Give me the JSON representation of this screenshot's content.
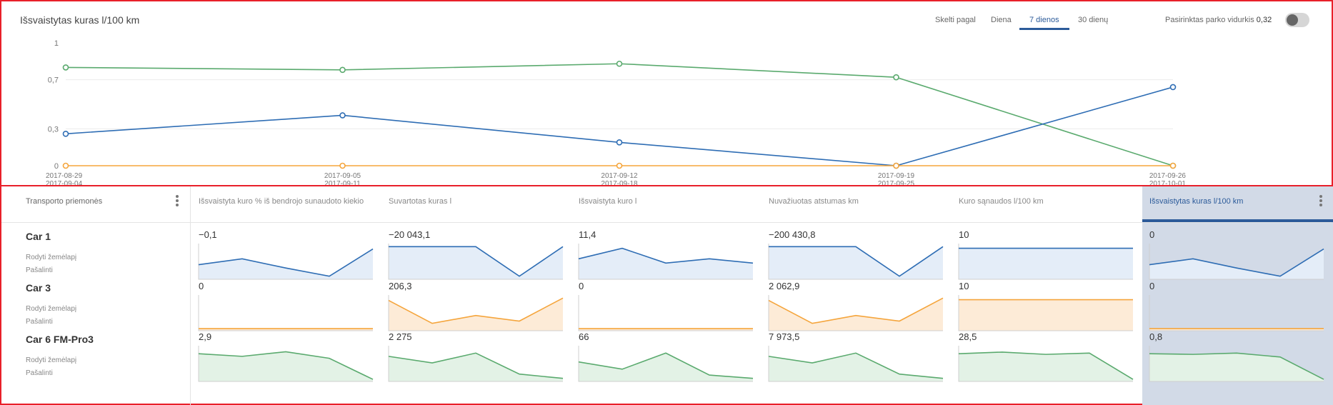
{
  "chart": {
    "title": "Išsvaistytas kuras l/100 km",
    "split_label": "Skelti pagal",
    "tabs": [
      "Diena",
      "7 dienos",
      "30 dienų"
    ],
    "active_tab": "7 dienos",
    "fleet_avg_label": "Pasirinktas parko vidurkis",
    "fleet_avg_value": "0,32",
    "toggle_on": false
  },
  "chart_data": {
    "type": "line",
    "title": "Išsvaistytas kuras l/100 km",
    "categories": [
      [
        "2017-08-29",
        "2017-09-04"
      ],
      [
        "2017-09-05",
        "2017-09-11"
      ],
      [
        "2017-09-12",
        "2017-09-18"
      ],
      [
        "2017-09-19",
        "2017-09-25"
      ],
      [
        "2017-09-26",
        "2017-10-01"
      ]
    ],
    "y_ticks": [
      {
        "value": 0,
        "label": "0"
      },
      {
        "value": 0.3,
        "label": "0,3"
      },
      {
        "value": 0.7,
        "label": "0,7"
      },
      {
        "value": 1,
        "label": "1"
      }
    ],
    "ylim": [
      0,
      1
    ],
    "series": [
      {
        "color": "#5aaa6e",
        "values": [
          0.8,
          0.78,
          0.83,
          0.72,
          0
        ]
      },
      {
        "color": "#2e6db4",
        "values": [
          0.26,
          0.41,
          0.19,
          0,
          0.64
        ]
      },
      {
        "color": "#f5a53c",
        "values": [
          0,
          0,
          0,
          0,
          0
        ]
      }
    ]
  },
  "table": {
    "vehicle_header": "Transporto priemonės",
    "columns": [
      "Išsvaistyta kuro % iš bendrojo sunaudoto kiekio",
      "Suvartotas kuras l",
      "Išsvaistyta kuro l",
      "Nuvažiuotas atstumas km",
      "Kuro sąnaudos l/100 km",
      "Išsvaistytas kuras l/100 km"
    ],
    "selected_column": 5,
    "show_on_map_label": "Rodyti žemėlapį",
    "remove_label": "Pašalinti",
    "rows": [
      {
        "name": "Car 1",
        "color": "#2e6db4",
        "fill": "#e4edf8",
        "values": [
          "−0,1",
          "−20 043,1",
          "11,4",
          "−200 430,8",
          "10",
          "0"
        ],
        "sparks": [
          [
            0.4,
            0.58,
            0.3,
            0.05,
            0.88
          ],
          [
            0.95,
            0.95,
            0.95,
            0.05,
            0.95
          ],
          [
            0.58,
            0.9,
            0.45,
            0.58,
            0.45
          ],
          [
            0.95,
            0.95,
            0.95,
            0.05,
            0.95
          ],
          [
            0.9,
            0.9,
            0.9,
            0.9,
            0.9
          ],
          [
            0.4,
            0.58,
            0.3,
            0.05,
            0.88
          ]
        ]
      },
      {
        "name": "Car 3",
        "color": "#f5a53c",
        "fill": "#fdebd7",
        "values": [
          "0",
          "206,3",
          "0",
          "2 062,9",
          "10",
          "0"
        ],
        "sparks": [
          [
            0.02,
            0.02,
            0.02,
            0.02,
            0.02
          ],
          [
            0.88,
            0.18,
            0.42,
            0.25,
            0.95
          ],
          [
            0.02,
            0.02,
            0.02,
            0.02,
            0.02
          ],
          [
            0.88,
            0.18,
            0.42,
            0.25,
            0.95
          ],
          [
            0.9,
            0.9,
            0.9,
            0.9,
            0.9
          ],
          [
            0.02,
            0.02,
            0.02,
            0.02,
            0.02
          ]
        ]
      },
      {
        "name": "Car 6 FM-Pro3",
        "color": "#5aaa6e",
        "fill": "#e3f2e6",
        "values": [
          "2,9",
          "2 275",
          "66",
          "7 973,5",
          "28,5",
          "0,8"
        ],
        "sparks": [
          [
            0.8,
            0.72,
            0.86,
            0.66,
            0.02
          ],
          [
            0.72,
            0.52,
            0.82,
            0.18,
            0.05
          ],
          [
            0.55,
            0.33,
            0.82,
            0.15,
            0.05
          ],
          [
            0.72,
            0.52,
            0.82,
            0.18,
            0.05
          ],
          [
            0.8,
            0.85,
            0.78,
            0.82,
            0.02
          ],
          [
            0.8,
            0.78,
            0.82,
            0.7,
            0.02
          ]
        ]
      }
    ]
  }
}
